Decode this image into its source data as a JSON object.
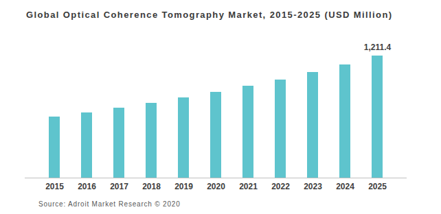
{
  "chart_data": {
    "type": "bar",
    "title": "Global Optical Coherence Tomography Market, 2015-2025 (USD Million)",
    "caption": "Source: Adroit Market Research © 2020",
    "categories": [
      "2015",
      "2016",
      "2017",
      "2018",
      "2019",
      "2020",
      "2021",
      "2022",
      "2023",
      "2024",
      "2025"
    ],
    "values": [
      606,
      647,
      694,
      742,
      796,
      851,
      912,
      973,
      1048,
      1123,
      1211.4
    ],
    "value_labels": [
      null,
      null,
      null,
      null,
      null,
      null,
      null,
      null,
      null,
      null,
      "1,211.4"
    ],
    "data_labels": true,
    "color": "#5ec4cd",
    "ylim": [
      0,
      1211.4
    ],
    "tick_labels": "x",
    "grid": false
  }
}
